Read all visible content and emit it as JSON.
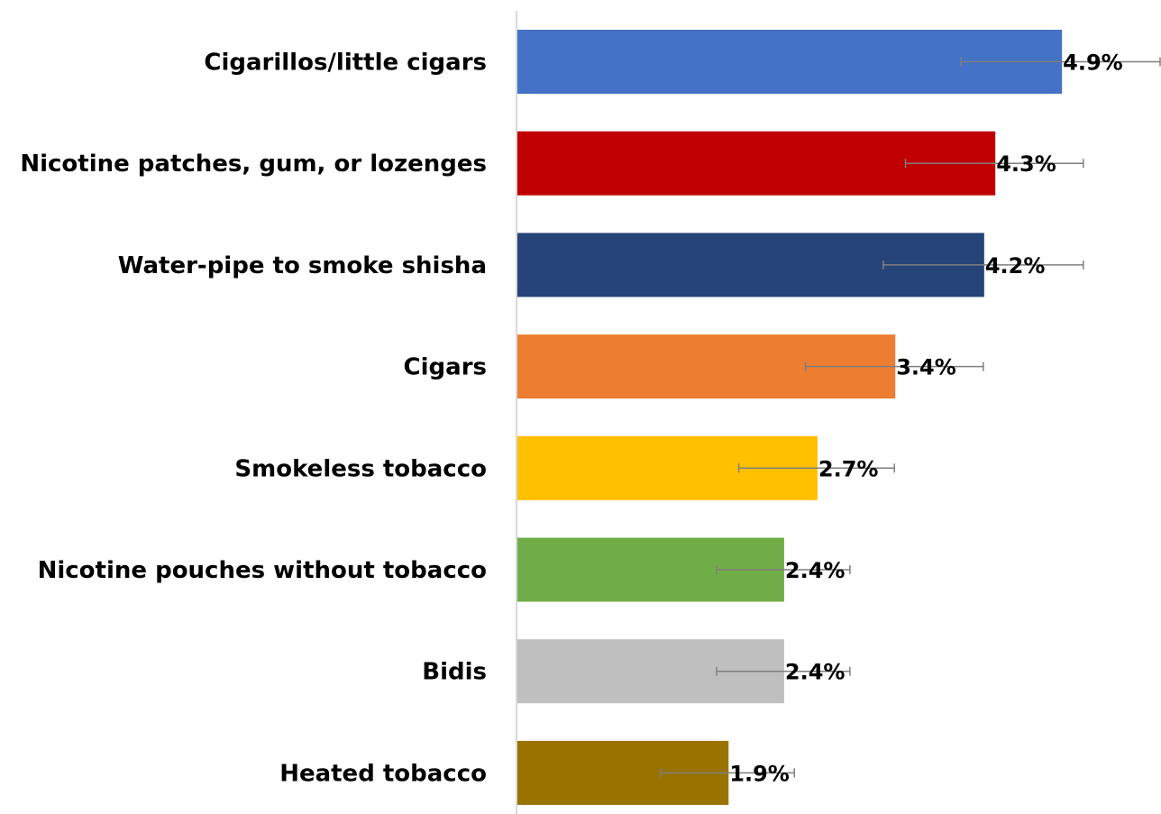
{
  "chart_data": {
    "type": "bar",
    "orientation": "horizontal",
    "title": "",
    "xlabel": "",
    "ylabel": "",
    "grid": false,
    "legend": "none",
    "categories": [
      "Cigarillos/little cigars",
      "Nicotine patches, gum, or lozenges",
      "Water-pipe to smoke shisha",
      "Cigars",
      "Smokeless tobacco",
      "Nicotine pouches without tobacco",
      "Bidis",
      "Heated tobacco"
    ],
    "values": [
      4.9,
      4.3,
      4.2,
      3.4,
      2.7,
      2.4,
      2.4,
      1.9
    ],
    "value_labels": [
      "4.9%",
      "4.3%",
      "4.2%",
      "3.4%",
      "2.7%",
      "2.4%",
      "2.4%",
      "1.9%"
    ],
    "error_bars": [
      {
        "low": 4.0,
        "high": 5.8
      },
      {
        "low": 3.5,
        "high": 5.1
      },
      {
        "low": 3.3,
        "high": 5.1
      },
      {
        "low": 2.6,
        "high": 4.2
      },
      {
        "low": 2.0,
        "high": 3.4
      },
      {
        "low": 1.8,
        "high": 3.0
      },
      {
        "low": 1.8,
        "high": 3.0
      },
      {
        "low": 1.3,
        "high": 2.5
      }
    ],
    "colors": [
      "#4472C4",
      "#C00000",
      "#264478",
      "#ED7D31",
      "#FFC000",
      "#70AD47",
      "#BFBFBF",
      "#997300"
    ],
    "xlim": [
      0,
      5.8
    ]
  }
}
